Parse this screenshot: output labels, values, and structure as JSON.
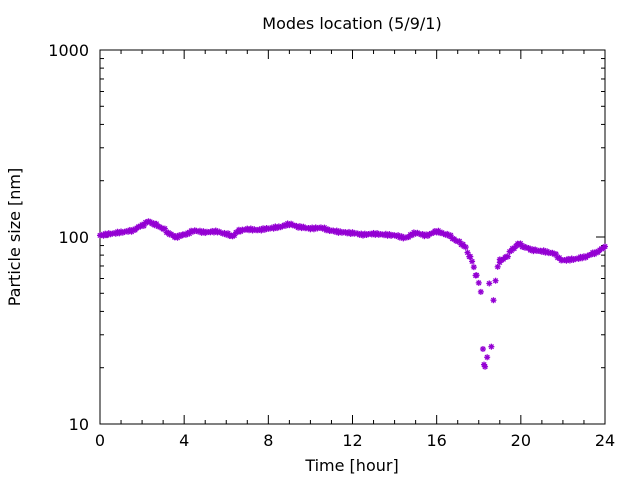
{
  "chart_data": {
    "type": "scatter",
    "title": "Modes location (5/9/1)",
    "xlabel": "Time [hour]",
    "ylabel": "Particle size [nm]",
    "xlim": [
      0,
      24
    ],
    "ylim": [
      10,
      1000
    ],
    "yscale": "log",
    "grid": false,
    "legend": "none",
    "x_ticks": [
      "0",
      "4",
      "8",
      "12",
      "16",
      "20",
      "24"
    ],
    "y_ticks": [
      "10",
      "100",
      "1000"
    ],
    "marker": "star",
    "color": "#9400d3",
    "x_samples": [
      0,
      0.5,
      1,
      1.5,
      2,
      2.3,
      2.6,
      3,
      3.3,
      3.6,
      4,
      4.5,
      5,
      5.5,
      6,
      6.3,
      6.6,
      7,
      7.5,
      8,
      8.5,
      9,
      9.5,
      10,
      10.5,
      11,
      11.5,
      12,
      12.5,
      13,
      13.5,
      14,
      14.5,
      15,
      15.5,
      16,
      16.5,
      17,
      17.3,
      17.6,
      17.9
    ],
    "y_samples": [
      102,
      104,
      106,
      108,
      115,
      121,
      117,
      111,
      104,
      100,
      103,
      108,
      106,
      107,
      104,
      101,
      108,
      110,
      109,
      111,
      113,
      117,
      113,
      111,
      112,
      108,
      106,
      105,
      103,
      104,
      103,
      102,
      99,
      105,
      102,
      107,
      103,
      95,
      90,
      78,
      62
    ],
    "x_samples_2": [
      19,
      19.3,
      19.6,
      19.9,
      20.2,
      20.6,
      21,
      21.5,
      22,
      22.5,
      23,
      23.5,
      24
    ],
    "y_samples_2": [
      74,
      78,
      86,
      92,
      88,
      85,
      84,
      82,
      75,
      76,
      78,
      82,
      88
    ],
    "dip_points": [
      [
        18.0,
        57
      ],
      [
        18.1,
        51
      ],
      [
        18.2,
        25
      ],
      [
        18.25,
        21
      ],
      [
        18.3,
        20
      ],
      [
        18.4,
        23
      ],
      [
        18.5,
        56
      ],
      [
        18.6,
        26
      ],
      [
        18.7,
        46
      ],
      [
        18.8,
        58
      ],
      [
        18.9,
        70
      ],
      [
        19.0,
        75
      ]
    ]
  }
}
